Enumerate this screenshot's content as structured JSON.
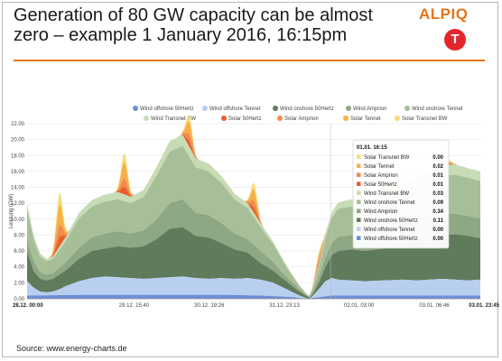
{
  "slide": {
    "title": "Generation of 80 GW capacity can be almost zero – example 1 January 2016, 16:15pm",
    "logo_text": "ALPIQ",
    "logo_mark": "T",
    "source": "Source: www.energy-charts.de"
  },
  "chart_data": {
    "type": "area",
    "ylabel": "Leistung (GW)",
    "ylim": [
      0,
      22
    ],
    "y_ticks": [
      "0.00",
      "2.00",
      "4.00",
      "6.00",
      "8.00",
      "10.00",
      "12.00",
      "14.00",
      "16.00",
      "18.00",
      "20.00",
      "22.00"
    ],
    "x_range_days": [
      0,
      6.99
    ],
    "x_ticks": [
      {
        "label": "28.12. 00:00",
        "day": 0,
        "bold": true
      },
      {
        "label": "29.12. 15:40",
        "day": 1.65,
        "bold": false
      },
      {
        "label": "30.12. 19:26",
        "day": 2.81,
        "bold": false
      },
      {
        "label": "31.12. 23:13",
        "day": 3.97,
        "bold": false
      },
      {
        "label": "02.01. 03:00",
        "day": 5.12,
        "bold": false
      },
      {
        "label": "03.01. 06:46",
        "day": 6.28,
        "bold": false
      },
      {
        "label": "03.01. 23:45",
        "day": 6.99,
        "bold": true
      }
    ],
    "colors": {
      "Wind offshore 50Hertz": "#6f8fd6",
      "Wind offshore Tennet": "#b9cff0",
      "Wind onshore 50Hertz": "#607a5c",
      "Wind Amprion": "#8ea885",
      "Wind onshore Tennet": "#a7bf98",
      "Wind Transnet BW": "#c7dbb5",
      "Solar 50Hertz": "#e85f2c",
      "Solar Amprion": "#f28a4a",
      "Solar Tennet": "#f6b04a",
      "Solar Transnet BW": "#f7dc78"
    },
    "legend": [
      "Wind offshore 50Hertz",
      "Wind offshore Tennet",
      "Wind onshore 50Hertz",
      "Wind Amprion",
      "Wind onshore Tennet",
      "Wind Transnet BW",
      "Solar 50Hertz",
      "Solar Amprion",
      "Solar Tennet",
      "Solar Transnet BW"
    ],
    "layers": {
      "offshore_total": {
        "t": [
          0,
          0.1,
          0.2,
          0.3,
          0.4,
          0.5,
          0.6,
          0.8,
          1.0,
          1.2,
          1.4,
          1.6,
          1.8,
          2.0,
          2.2,
          2.4,
          2.6,
          2.8,
          3.0,
          3.2,
          3.4,
          3.6,
          3.8,
          3.9,
          4.0,
          4.1,
          4.2,
          4.3,
          4.35,
          4.4,
          4.5,
          4.6,
          4.7,
          4.8,
          5.0,
          5.2,
          5.5,
          5.8,
          6.0,
          6.2,
          6.4,
          6.6,
          6.8,
          6.99
        ],
        "v": [
          2.2,
          1.4,
          0.9,
          0.8,
          0.9,
          1.2,
          1.6,
          2.2,
          2.6,
          2.8,
          2.7,
          2.6,
          2.5,
          2.6,
          2.7,
          2.8,
          2.6,
          2.5,
          2.6,
          2.5,
          2.6,
          2.4,
          2.0,
          1.6,
          1.2,
          0.8,
          0.4,
          0.1,
          0.0,
          0.3,
          1.2,
          2.2,
          2.6,
          2.4,
          2.3,
          2.2,
          2.3,
          2.4,
          2.3,
          2.4,
          2.5,
          2.4,
          2.3,
          2.4
        ]
      },
      "offshore_50hertz": {
        "t": [
          0,
          1,
          2,
          3,
          3.6,
          3.9,
          4.1,
          4.3,
          4.5,
          4.7,
          5,
          6,
          6.99
        ],
        "v": [
          0.4,
          0.5,
          0.5,
          0.5,
          0.4,
          0.3,
          0.2,
          0.0,
          0.2,
          0.4,
          0.4,
          0.4,
          0.4
        ]
      },
      "wind_50hertz": {
        "t": [
          0,
          0.1,
          0.2,
          0.3,
          0.4,
          0.6,
          0.8,
          1.0,
          1.2,
          1.4,
          1.6,
          1.8,
          2.0,
          2.2,
          2.4,
          2.6,
          2.8,
          3.0,
          3.2,
          3.4,
          3.6,
          3.8,
          3.9,
          4.0,
          4.1,
          4.2,
          4.3,
          4.35,
          4.4,
          4.5,
          4.6,
          4.7,
          4.8,
          5.0,
          5.2,
          5.5,
          5.8,
          6.0,
          6.2,
          6.4,
          6.6,
          6.8,
          6.99
        ],
        "v": [
          6.0,
          3.5,
          2.5,
          2.3,
          2.5,
          3.6,
          5.0,
          6.0,
          6.3,
          6.6,
          6.4,
          6.6,
          7.5,
          8.8,
          9.0,
          7.9,
          7.7,
          7.0,
          6.2,
          5.8,
          4.5,
          3.5,
          2.8,
          2.2,
          1.5,
          0.9,
          0.4,
          0.1,
          0.5,
          2.0,
          4.0,
          5.5,
          6.0,
          6.2,
          6.0,
          6.3,
          7.0,
          7.4,
          7.8,
          8.0,
          8.1,
          7.9,
          7.6
        ]
      },
      "wind_amprion": {
        "t": [
          0,
          0.1,
          0.2,
          0.3,
          0.4,
          0.6,
          0.8,
          1.0,
          1.2,
          1.4,
          1.6,
          1.8,
          2.0,
          2.2,
          2.4,
          2.6,
          2.8,
          3.0,
          3.2,
          3.4,
          3.6,
          3.8,
          3.9,
          4.0,
          4.1,
          4.2,
          4.3,
          4.35,
          4.4,
          4.5,
          4.6,
          4.7,
          4.8,
          5.0,
          5.2,
          5.5,
          5.8,
          6.0,
          6.2,
          6.4,
          6.6,
          6.8,
          6.99
        ],
        "v": [
          7.5,
          4.8,
          3.4,
          3.0,
          3.2,
          4.6,
          6.4,
          7.7,
          8.2,
          8.5,
          8.2,
          8.6,
          10.0,
          12.0,
          12.5,
          10.8,
          10.5,
          9.5,
          8.2,
          7.5,
          6.0,
          4.6,
          3.6,
          2.8,
          2.0,
          1.2,
          0.5,
          0.2,
          0.8,
          2.8,
          5.2,
          7.0,
          7.8,
          8.0,
          7.8,
          8.2,
          9.2,
          9.8,
          10.3,
          10.6,
          10.7,
          10.4,
          10.1
        ]
      },
      "wind_tennet": {
        "t": [
          0,
          0.1,
          0.2,
          0.3,
          0.4,
          0.6,
          0.8,
          1.0,
          1.2,
          1.4,
          1.6,
          1.8,
          2.0,
          2.2,
          2.4,
          2.6,
          2.8,
          3.0,
          3.2,
          3.4,
          3.6,
          3.8,
          3.9,
          4.0,
          4.1,
          4.2,
          4.3,
          4.35,
          4.4,
          4.5,
          4.6,
          4.7,
          4.8,
          5.0,
          5.2,
          5.5,
          5.8,
          6.0,
          6.2,
          6.4,
          6.6,
          6.8,
          6.99
        ],
        "v": [
          11.2,
          7.5,
          5.3,
          4.7,
          5.0,
          7.3,
          10.1,
          11.6,
          12.2,
          12.5,
          12.0,
          12.8,
          15.5,
          18.5,
          19.2,
          16.5,
          16.0,
          14.5,
          12.5,
          11.4,
          9.0,
          6.8,
          5.4,
          4.0,
          2.8,
          1.6,
          0.7,
          0.3,
          1.2,
          4.0,
          7.6,
          10.2,
          11.3,
          11.6,
          11.3,
          11.9,
          13.5,
          14.3,
          15.0,
          15.5,
          15.6,
          15.2,
          14.8
        ]
      },
      "wind_total": {
        "t": [
          0,
          0.1,
          0.2,
          0.3,
          0.4,
          0.6,
          0.8,
          1.0,
          1.2,
          1.4,
          1.6,
          1.8,
          2.0,
          2.2,
          2.4,
          2.6,
          2.8,
          3.0,
          3.2,
          3.4,
          3.6,
          3.8,
          3.9,
          4.0,
          4.1,
          4.2,
          4.3,
          4.35,
          4.4,
          4.5,
          4.6,
          4.7,
          4.8,
          5.0,
          5.2,
          5.5,
          5.8,
          6.0,
          6.2,
          6.4,
          6.6,
          6.8,
          6.99
        ],
        "v": [
          12.0,
          8.0,
          5.7,
          5.0,
          5.3,
          7.8,
          10.8,
          12.4,
          13.1,
          13.4,
          12.8,
          13.7,
          16.6,
          19.8,
          20.6,
          17.6,
          17.0,
          15.4,
          13.2,
          12.0,
          9.5,
          7.1,
          5.6,
          4.2,
          2.9,
          1.7,
          0.7,
          0.3,
          1.3,
          4.3,
          8.1,
          10.9,
          12.1,
          12.5,
          12.2,
          12.8,
          14.5,
          15.4,
          16.2,
          16.7,
          16.9,
          16.4,
          16.0
        ]
      },
      "solar_days": [
        0.5,
        1.5,
        2.5,
        3.5,
        4.5,
        5.5,
        6.5
      ],
      "solar_peaks_gw": [
        6.8,
        5.2,
        4.0,
        3.8,
        1.5,
        2.8,
        0.6
      ]
    },
    "tooltip": {
      "title": "01.01. 16:15",
      "rows": [
        {
          "name": "Solar Transnet BW",
          "value": "0.00"
        },
        {
          "name": "Solar Tennet",
          "value": "0.02"
        },
        {
          "name": "Solar Amprion",
          "value": "0.01"
        },
        {
          "name": "Solar 50Hertz",
          "value": "0.01"
        },
        {
          "name": "Wind Transnet BW",
          "value": "0.03"
        },
        {
          "name": "Wind onshore Tennet",
          "value": "0.09"
        },
        {
          "name": "Wind Amprion",
          "value": "0.34"
        },
        {
          "name": "Wind onshore 50Hertz",
          "value": "0.11"
        },
        {
          "name": "Wind offshore Tennet",
          "value": "0.00"
        },
        {
          "name": "Wind offshore 50Hertz",
          "value": "0.00"
        }
      ]
    }
  }
}
